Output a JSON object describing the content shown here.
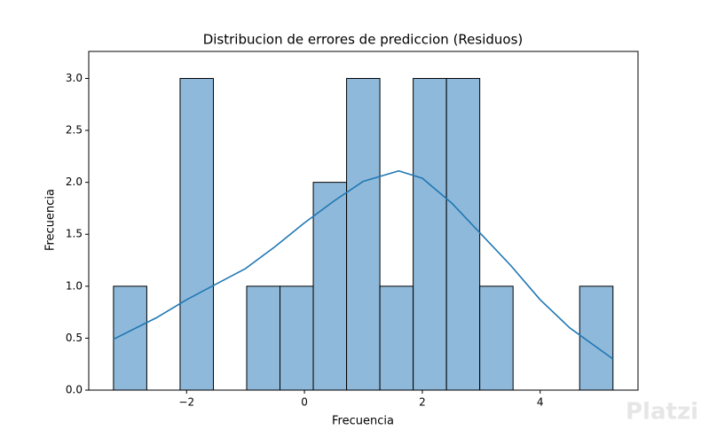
{
  "chart_data": {
    "type": "histogram",
    "title": "Distribucion de errores de prediccion (Residuos)",
    "x_label": "Frecuencia",
    "y_label": "Frecuencia",
    "bins": [
      -3.24,
      -2.675,
      -2.11,
      -1.545,
      -0.98,
      -0.415,
      0.15,
      0.715,
      1.28,
      1.845,
      2.41,
      2.975,
      3.54,
      4.105,
      4.67,
      5.235
    ],
    "counts": [
      1,
      0,
      3,
      0,
      1,
      1,
      2,
      3,
      1,
      3,
      3,
      1,
      0,
      0,
      1
    ],
    "color": "#8fb9da",
    "edge_color": "#000000",
    "kde": {
      "color": "#1f77b4",
      "x": [
        -3.24,
        -2.5,
        -2,
        -1.5,
        -1,
        -0.5,
        0,
        0.5,
        1,
        1.6,
        2,
        2.5,
        3,
        3.5,
        4,
        4.5,
        5.235
      ],
      "values": [
        0.49,
        0.7,
        0.87,
        1.02,
        1.17,
        1.38,
        1.61,
        1.82,
        2.01,
        2.11,
        2.04,
        1.8,
        1.5,
        1.2,
        0.87,
        0.6,
        0.3
      ]
    },
    "xlim": [
      -3.66,
      5.66
    ],
    "ylim": [
      0,
      3.26
    ],
    "xticks": [
      {
        "value": -2,
        "label": "−2"
      },
      0,
      2,
      4
    ],
    "yticks": [
      {
        "value": 0,
        "label": "0.0"
      },
      {
        "value": 0.5,
        "label": "0.5"
      },
      {
        "value": 1,
        "label": "1.0"
      },
      {
        "value": 1.5,
        "label": "1.5"
      },
      {
        "value": 2,
        "label": "2.0"
      },
      {
        "value": 2.5,
        "label": "2.5"
      },
      {
        "value": 3,
        "label": "3.0"
      }
    ],
    "watermark": "Platzi"
  }
}
